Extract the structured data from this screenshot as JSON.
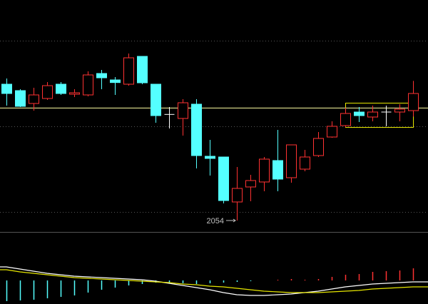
{
  "chart_data": [
    {
      "type": "candlestick",
      "open": [
        2340.5,
        2327,
        2300,
        2310.5,
        2340.5,
        2319.5,
        2318,
        2363,
        2349.5,
        2340.5,
        2399,
        2340.5,
        2277,
        2268.5,
        2298.5,
        2189,
        2187.5,
        2093,
        2124.5,
        2135,
        2180,
        2144,
        2162,
        2190.5,
        2229.5,
        2253.5,
        2282,
        2271.5,
        2282,
        2282,
        2285
      ],
      "high": [
        2352.5,
        2330,
        2333,
        2345,
        2345,
        2330,
        2367.5,
        2370.5,
        2355.5,
        2405,
        2399,
        2340.5,
        2292.5,
        2309,
        2309,
        2223.5,
        2187.5,
        2166.5,
        2150,
        2187.5,
        2244.5,
        2213,
        2202.5,
        2240,
        2262.5,
        2291,
        2292.5,
        2295.5,
        2295.5,
        2298.5,
        2347.5
      ],
      "low": [
        2295.5,
        2292.5,
        2285,
        2307.5,
        2318,
        2313.5,
        2315,
        2330,
        2318,
        2337.5,
        2340.5,
        2259.5,
        2247.5,
        2232.5,
        2163.5,
        2148.5,
        2090,
        2054,
        2094.5,
        2115.5,
        2115.5,
        2133.5,
        2157.5,
        2187.5,
        2228,
        2250.5,
        2261,
        2262.5,
        2252,
        2262.5,
        2272.5
      ],
      "close": [
        2321,
        2294,
        2318,
        2337.5,
        2321,
        2322.5,
        2360,
        2354,
        2344,
        2396,
        2343.5,
        2274.5,
        2277,
        2301.5,
        2190.5,
        2184.5,
        2096,
        2121.5,
        2138,
        2183,
        2141,
        2213,
        2187.5,
        2226.5,
        2252,
        2279,
        2274.5,
        2282,
        2282,
        2288,
        2321
      ],
      "ylim": [
        2030,
        2472.5
      ],
      "up_color": "#ff3232",
      "down_color": "#54ffff",
      "flat_color": "#ffffff",
      "reference_line": 2290.5,
      "reference_color": "#ffffa0"
    },
    {
      "type": "macd",
      "histogram": [
        -29,
        -28,
        -27,
        -25,
        -23,
        -21,
        -17,
        -13,
        -10,
        -7,
        -5,
        -3,
        -3,
        -4,
        -5,
        -4,
        -3,
        -2,
        -1,
        0,
        1,
        2,
        1,
        2,
        5,
        8,
        9,
        12,
        13,
        14,
        17
      ],
      "up_color": "#ff3232",
      "down_color": "#54ffff",
      "series": [
        {
          "color": "#ffffff",
          "values": [
            19,
            16,
            13,
            10,
            8,
            6,
            5,
            4,
            3,
            2,
            1,
            -1,
            -4,
            -7,
            -10,
            -13,
            -17,
            -20,
            -21,
            -21,
            -20,
            -19,
            -17,
            -15,
            -12,
            -9,
            -7,
            -5,
            -4,
            -3,
            -2
          ]
        },
        {
          "color": "#e6e600",
          "values": [
            15,
            12,
            10,
            8,
            6,
            4,
            3,
            2,
            1,
            0,
            -1,
            -2,
            -3,
            -5,
            -6,
            -8,
            -9,
            -11,
            -13,
            -15,
            -16,
            -17,
            -17,
            -17,
            -16,
            -15,
            -14,
            -12,
            -11,
            -10,
            -9
          ]
        }
      ],
      "ylim": [
        -33,
        67
      ]
    }
  ]
}
